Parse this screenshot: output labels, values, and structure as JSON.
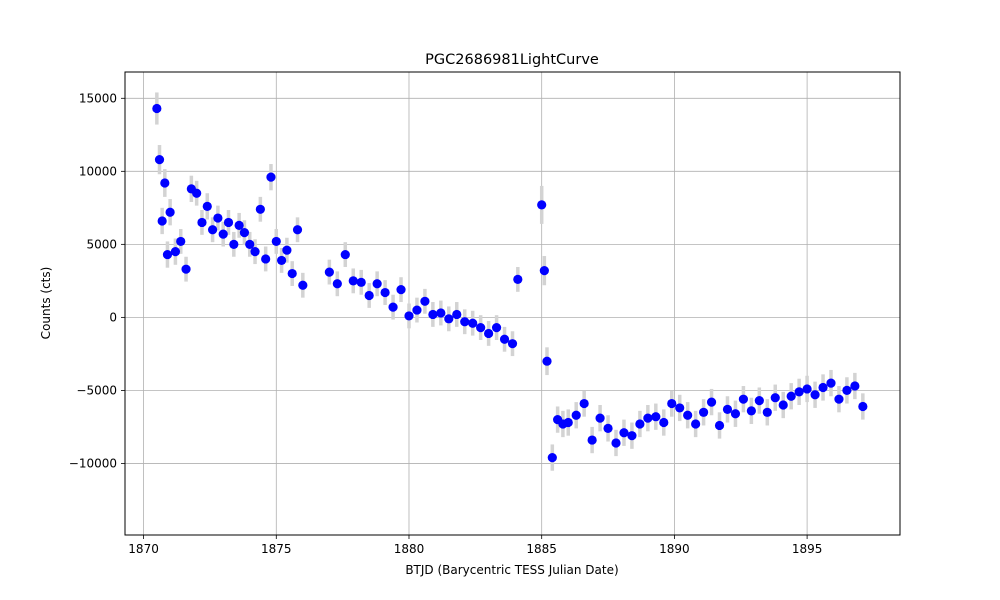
{
  "chart_data": {
    "type": "scatter",
    "title": "PGC2686981LightCurve",
    "xlabel": "BTJD (Barycentric TESS Julian Date)",
    "ylabel": "Counts (cts)",
    "xlim": [
      1869.3,
      1898.5
    ],
    "ylim": [
      -14900,
      16800
    ],
    "xticks": [
      1870,
      1875,
      1880,
      1885,
      1890,
      1895
    ],
    "yticks": [
      -10000,
      -5000,
      0,
      5000,
      10000,
      15000
    ],
    "ytick_labels": [
      "−10000",
      "−5000",
      "0",
      "5000",
      "10000",
      "15000"
    ],
    "grid": true,
    "marker_color": "#0000ff",
    "errorbar_color": "#d3d3d3",
    "series": [
      {
        "x": [
          1870.5,
          1870.6,
          1870.7,
          1870.8,
          1870.9,
          1871.0,
          1871.2,
          1871.4,
          1871.6,
          1871.8,
          1872.0,
          1872.2,
          1872.4,
          1872.6,
          1872.8,
          1873.0,
          1873.2,
          1873.4,
          1873.6,
          1873.8,
          1874.0,
          1874.2,
          1874.4,
          1874.6,
          1874.8,
          1875.0,
          1875.2,
          1875.4,
          1875.6,
          1875.8,
          1876.0,
          1877.0,
          1877.3,
          1877.6,
          1877.9,
          1878.2,
          1878.5,
          1878.8,
          1879.1,
          1879.4,
          1879.7,
          1880.0,
          1880.3,
          1880.6,
          1880.9,
          1881.2,
          1881.5,
          1881.8,
          1882.1,
          1882.4,
          1882.7,
          1883.0,
          1883.3,
          1883.6,
          1883.9,
          1884.1,
          1885.0,
          1885.1,
          1885.2,
          1885.4,
          1885.6,
          1885.8,
          1886.0,
          1886.3,
          1886.6,
          1886.9,
          1887.2,
          1887.5,
          1887.8,
          1888.1,
          1888.4,
          1888.7,
          1889.0,
          1889.3,
          1889.6,
          1889.9,
          1890.2,
          1890.5,
          1890.8,
          1891.1,
          1891.4,
          1891.7,
          1892.0,
          1892.3,
          1892.6,
          1892.9,
          1893.2,
          1893.5,
          1893.8,
          1894.1,
          1894.4,
          1894.7,
          1895.0,
          1895.3,
          1895.6,
          1895.9,
          1896.2,
          1896.5,
          1896.8,
          1897.1
        ],
        "y": [
          14300,
          10800,
          6600,
          9200,
          4300,
          7200,
          4500,
          5200,
          3300,
          8800,
          8500,
          6500,
          7600,
          6000,
          6800,
          5700,
          6500,
          5000,
          6300,
          5800,
          5000,
          4500,
          7400,
          4000,
          9600,
          5200,
          3900,
          4600,
          3000,
          6000,
          2200,
          3100,
          2300,
          4300,
          2500,
          2400,
          1500,
          2300,
          1700,
          700,
          1900,
          100,
          500,
          1100,
          200,
          300,
          -100,
          200,
          -300,
          -400,
          -700,
          -1100,
          -700,
          -1500,
          -1800,
          2600,
          7700,
          3200,
          -3000,
          -9600,
          -7000,
          -7300,
          -7200,
          -6700,
          -5900,
          -8400,
          -6900,
          -7600,
          -8600,
          -7900,
          -8100,
          -7300,
          -6900,
          -6800,
          -7200,
          -5900,
          -6200,
          -6700,
          -7300,
          -6500,
          -5800,
          -7400,
          -6300,
          -6600,
          -5600,
          -6400,
          -5700,
          -6500,
          -5500,
          -6000,
          -5400,
          -5100,
          -4900,
          -5300,
          -4800,
          -4500,
          -5600,
          -5000,
          -4700,
          -6100
        ],
        "yerr": [
          1100,
          1000,
          900,
          950,
          900,
          900,
          900,
          850,
          850,
          900,
          850,
          850,
          900,
          850,
          850,
          850,
          850,
          850,
          850,
          850,
          850,
          850,
          850,
          850,
          900,
          850,
          850,
          850,
          850,
          850,
          850,
          850,
          850,
          850,
          850,
          850,
          850,
          850,
          850,
          850,
          850,
          850,
          850,
          850,
          850,
          850,
          850,
          850,
          850,
          850,
          850,
          850,
          850,
          850,
          850,
          850,
          1300,
          1000,
          950,
          900,
          900,
          900,
          900,
          900,
          900,
          900,
          900,
          900,
          900,
          900,
          900,
          900,
          900,
          900,
          900,
          900,
          900,
          900,
          900,
          900,
          900,
          900,
          900,
          900,
          900,
          900,
          900,
          900,
          900,
          900,
          900,
          900,
          900,
          900,
          900,
          900,
          900,
          900,
          900,
          900
        ]
      }
    ]
  }
}
